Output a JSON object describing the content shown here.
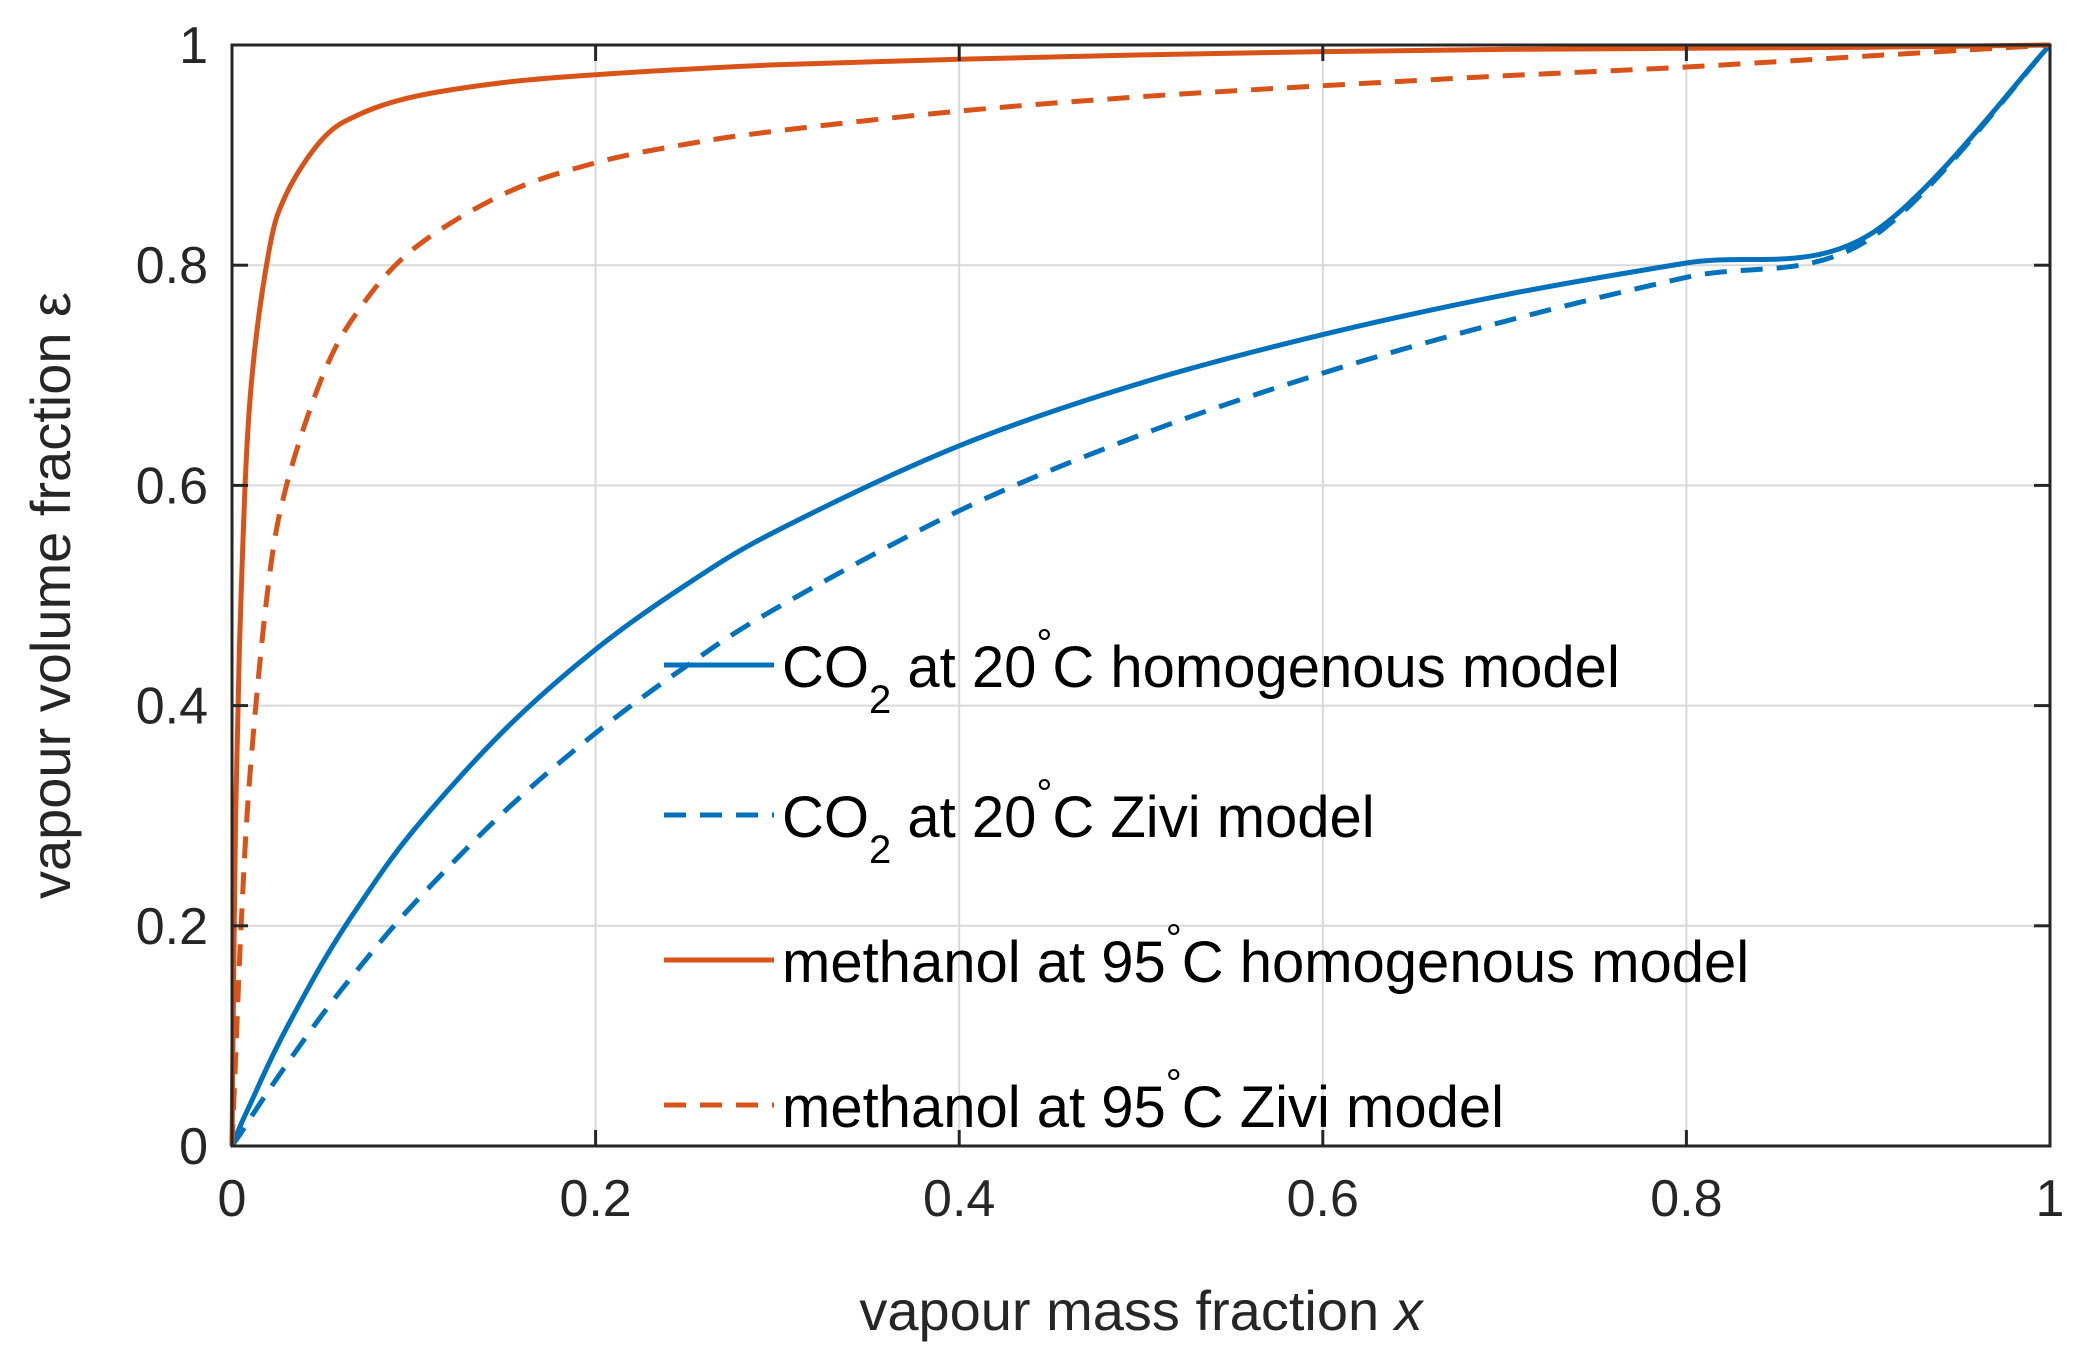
{
  "chart_data": {
    "type": "line",
    "title": "",
    "xlabel": "vapour mass fraction ",
    "xlabel_var": "x",
    "ylabel": "vapour volume fraction ",
    "ylabel_var": "ε",
    "xlim": [
      0,
      1
    ],
    "ylim": [
      0,
      1
    ],
    "xticks": [
      0,
      0.2,
      0.4,
      0.6,
      0.8,
      1
    ],
    "yticks": [
      0,
      0.2,
      0.4,
      0.6,
      0.8,
      1
    ],
    "xtick_labels": [
      "0",
      "0.2",
      "0.4",
      "0.6",
      "0.8",
      "1"
    ],
    "ytick_labels": [
      "0",
      "0.2",
      "0.4",
      "0.6",
      "0.8",
      "1"
    ],
    "grid": true,
    "legend_position": "lower-right",
    "x": [
      0,
      0.002,
      0.005,
      0.01,
      0.02,
      0.03,
      0.05,
      0.07,
      0.1,
      0.15,
      0.2,
      0.25,
      0.3,
      0.4,
      0.5,
      0.6,
      0.7,
      0.8,
      0.9,
      1.0
    ],
    "series": [
      {
        "name": "CO2 at 20°C homogenous model",
        "legend_parts": {
          "pre": "CO",
          "sub": "2",
          "mid": " at 20",
          "sup": "°",
          "post": "C homogenous model"
        },
        "color": "#0072bd",
        "dash": "solid",
        "values": [
          0,
          0.008,
          0.02,
          0.038,
          0.074,
          0.107,
          0.167,
          0.219,
          0.287,
          0.378,
          0.451,
          0.51,
          0.559,
          0.636,
          0.693,
          0.737,
          0.773,
          0.802,
          0.827,
          1.0
        ]
      },
      {
        "name": "CO2 at 20°C Zivi model",
        "legend_parts": {
          "pre": "CO",
          "sub": "2",
          "mid": " at 20",
          "sup": "°",
          "post": "C Zivi model"
        },
        "color": "#0072bd",
        "dash": "dashed",
        "values": [
          0,
          0.005,
          0.012,
          0.025,
          0.05,
          0.074,
          0.12,
          0.162,
          0.22,
          0.304,
          0.375,
          0.436,
          0.489,
          0.577,
          0.646,
          0.702,
          0.749,
          0.789,
          0.823,
          1.0
        ]
      },
      {
        "name": "methanol at 95°C homogenous model",
        "legend_parts": {
          "pre": "methanol at 95",
          "sub": "",
          "mid": "",
          "sup": "°",
          "post": "C homogenous model"
        },
        "color": "#d95319",
        "dash": "solid",
        "values": [
          0,
          0.3,
          0.5,
          0.68,
          0.81,
          0.865,
          0.915,
          0.937,
          0.953,
          0.966,
          0.973,
          0.978,
          0.982,
          0.987,
          0.991,
          0.994,
          0.996,
          0.997,
          0.998,
          1.0
        ]
      },
      {
        "name": "methanol at 95°C Zivi model",
        "legend_parts": {
          "pre": "methanol at 95",
          "sub": "",
          "mid": "",
          "sup": "°",
          "post": "C Zivi model"
        },
        "color": "#d95319",
        "dash": "dashed",
        "values": [
          0,
          0.08,
          0.2,
          0.34,
          0.51,
          0.6,
          0.7,
          0.76,
          0.815,
          0.865,
          0.893,
          0.91,
          0.922,
          0.94,
          0.953,
          0.963,
          0.972,
          0.98,
          0.99,
          1.0
        ]
      }
    ]
  }
}
